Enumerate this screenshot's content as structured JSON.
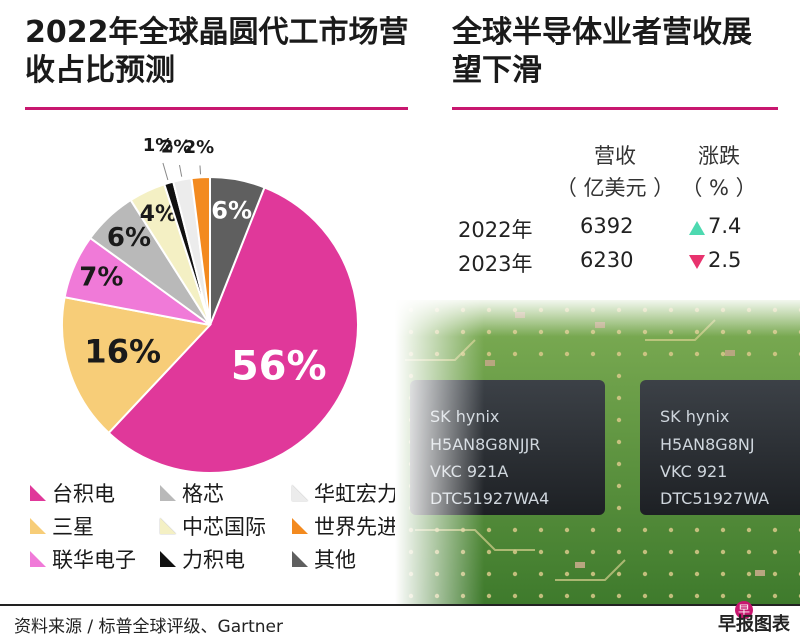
{
  "left_title": "2022年全球晶圆代工市场营收占比预测",
  "right_title": "全球半导体业者营收展望下滑",
  "chart_data": {
    "type": "pie",
    "title": "2022年全球晶圆代工市场营收占比预测",
    "slices": [
      {
        "name": "台积电",
        "value": 56,
        "label": "56%",
        "color": "#e0389a"
      },
      {
        "name": "三星",
        "value": 16,
        "label": "16%",
        "color": "#f7cd78"
      },
      {
        "name": "联华电子",
        "value": 7,
        "label": "7%",
        "color": "#f07ad8"
      },
      {
        "name": "格芯",
        "value": 6,
        "label": "6%",
        "color": "#b9b9b9"
      },
      {
        "name": "中芯国际",
        "value": 4,
        "label": "4%",
        "color": "#f4f0c4"
      },
      {
        "name": "力积电",
        "value": 1,
        "label": "1%",
        "color": "#111111"
      },
      {
        "name": "华虹宏力",
        "value": 2,
        "label": "2%",
        "color": "#ececec"
      },
      {
        "name": "世界先进",
        "value": 2,
        "label": "2%",
        "color": "#f38a1f"
      },
      {
        "name": "其他",
        "value": 6,
        "label": "6%",
        "color": "#5f5f5f"
      }
    ]
  },
  "legend": [
    {
      "label": "台积电",
      "color": "#e0389a"
    },
    {
      "label": "格芯",
      "color": "#b9b9b9"
    },
    {
      "label": "华虹宏力",
      "color": "#ececec"
    },
    {
      "label": "三星",
      "color": "#f7cd78"
    },
    {
      "label": "中芯国际",
      "color": "#f4f0c4"
    },
    {
      "label": "世界先进",
      "color": "#f38a1f"
    },
    {
      "label": "联华电子",
      "color": "#f07ad8"
    },
    {
      "label": "力积电",
      "color": "#111111"
    },
    {
      "label": "其他",
      "color": "#5f5f5f"
    }
  ],
  "revenue_table": {
    "header_revenue": "营收",
    "header_revenue_unit": "（ 亿美元 ）",
    "header_change": "涨跌",
    "header_change_unit": "（ % ）",
    "rows": [
      {
        "year": "2022年",
        "revenue": "6392",
        "direction": "up",
        "change": "7.4",
        "arrow_color": "#4dd9b0"
      },
      {
        "year": "2023年",
        "revenue": "6230",
        "direction": "down",
        "change": "2.5",
        "arrow_color": "#e8336e"
      }
    ]
  },
  "chips": [
    {
      "line1": "SK hynix",
      "line2": "H5AN8G8NJJR",
      "line3": "VKC  921A",
      "line4": "DTC51927WA4"
    },
    {
      "line1": "SK hynix",
      "line2": "H5AN8G8NJ",
      "line3": "VKC  921",
      "line4": "DTC51927WA"
    }
  ],
  "source": "资料来源 / 标普全球评级、Gartner",
  "brand": "早报图表",
  "brand_logo": "早"
}
